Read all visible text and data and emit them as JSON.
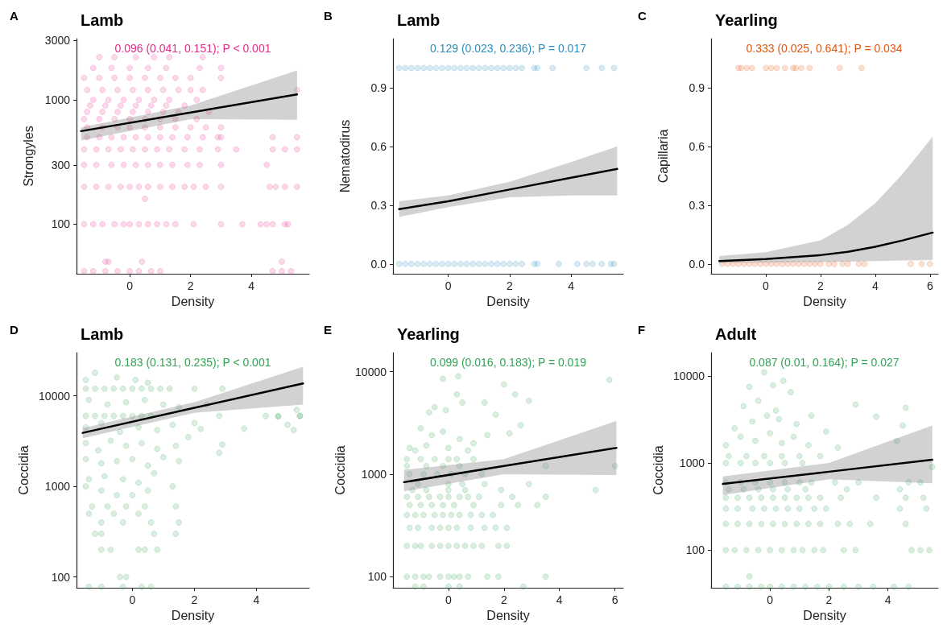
{
  "chart_data": [
    {
      "type": "scatter",
      "title": "Lamb",
      "xlabel": "Density",
      "ylabel": "Strongyles",
      "annotations": [
        "A",
        "0.096 (0.041, 0.151); P < 0.001"
      ],
      "log": "y",
      "xlim": [
        -1.75,
        5.9
      ],
      "xticks": [
        0,
        2,
        4
      ],
      "ylim": [
        40,
        3100
      ],
      "yticks": [
        100,
        300,
        1000,
        3000
      ],
      "series": [
        {
          "type": "scatter",
          "marker": "circle",
          "color": "#e7298a",
          "x": [
            -1.5,
            -1.2,
            -0.8,
            -0.4,
            0,
            0.3,
            0.7,
            1.0,
            4.7,
            5.0,
            5.3,
            -0.8,
            -0.7,
            0.4,
            5.0,
            0.5,
            -1.5,
            -1.2,
            -0.9,
            -0.5,
            -0.2,
            0,
            0.3,
            0.6,
            0.9,
            1.2,
            1.5,
            2.1,
            3.0,
            3.7,
            4.3,
            4.5,
            4.7,
            5.1,
            5.2,
            -1.5,
            -1.1,
            -0.7,
            -0.3,
            0,
            0.3,
            0.6,
            1.0,
            1.4,
            1.8,
            2.1,
            2.5,
            3.0,
            4.6,
            4.8,
            5.1,
            5.5,
            -1.5,
            -1.1,
            -0.6,
            -0.2,
            0.2,
            0.6,
            1.0,
            1.4,
            1.9,
            2.3,
            3.0,
            4.5,
            -1.5,
            -1.1,
            -0.7,
            -0.3,
            0.1,
            0.5,
            0.9,
            1.3,
            1.8,
            2.3,
            2.9,
            3.5,
            4.7,
            5.1,
            5.5,
            -1.4,
            -1.0,
            -0.6,
            -0.2,
            0.2,
            0.6,
            1.0,
            1.4,
            1.9,
            2.4,
            2.9,
            3.0,
            4.7,
            5.5,
            -1.4,
            -0.9,
            -0.4,
            0.0,
            0.5,
            1.0,
            1.5,
            2.0,
            2.5,
            3.0,
            -1.5,
            -1.0,
            -0.5,
            0,
            0.5,
            1.0,
            1.5,
            2.2,
            -1.4,
            -0.9,
            -0.4,
            0.1,
            0.6,
            1.1,
            1.6,
            2.6,
            -1.3,
            -0.8,
            -0.3,
            0.2,
            0.7,
            1.2,
            1.8,
            -1.2,
            -0.7,
            -0.2,
            0.3,
            0.8,
            1.3,
            2.2,
            -1.4,
            -0.9,
            -0.4,
            0.1,
            0.6,
            1.1,
            1.6,
            2.0,
            2.4,
            5.5,
            -1.5,
            -1.0,
            -0.5,
            0,
            0.5,
            1.0,
            1.5,
            2.0,
            3.0,
            -1.2,
            -0.6,
            0,
            0.6,
            1.2,
            2.3,
            3.0,
            -1.0,
            -0.5,
            0.2,
            0.8,
            1.3,
            2.4
          ],
          "values": [
            42,
            42,
            42,
            42,
            42,
            42,
            42,
            42,
            42,
            42,
            42,
            50,
            50,
            50,
            50,
            160,
            100,
            100,
            100,
            100,
            100,
            100,
            100,
            100,
            100,
            100,
            100,
            100,
            100,
            100,
            100,
            100,
            100,
            100,
            100,
            200,
            200,
            200,
            200,
            200,
            200,
            200,
            200,
            200,
            200,
            200,
            200,
            200,
            200,
            200,
            200,
            200,
            300,
            300,
            300,
            300,
            300,
            300,
            300,
            300,
            300,
            300,
            300,
            300,
            400,
            400,
            400,
            400,
            400,
            400,
            400,
            400,
            400,
            400,
            400,
            400,
            400,
            400,
            400,
            500,
            500,
            500,
            500,
            500,
            500,
            500,
            500,
            500,
            500,
            500,
            500,
            500,
            500,
            600,
            600,
            600,
            600,
            600,
            600,
            600,
            600,
            600,
            600,
            700,
            700,
            700,
            700,
            700,
            700,
            700,
            700,
            800,
            800,
            800,
            800,
            800,
            800,
            800,
            800,
            900,
            900,
            900,
            900,
            900,
            900,
            900,
            1000,
            1000,
            1000,
            1000,
            1000,
            1000,
            1000,
            1200,
            1200,
            1200,
            1200,
            1200,
            1200,
            1200,
            1200,
            1200,
            1200,
            1500,
            1500,
            1500,
            1500,
            1500,
            1500,
            1500,
            1500,
            1500,
            1800,
            1800,
            1800,
            1800,
            1800,
            1800,
            1800,
            2200,
            2200,
            2200,
            2200,
            2200,
            2200
          ]
        },
        {
          "type": "line",
          "marker": "none",
          "color": "#000000",
          "x": [
            -1.6,
            2,
            5.5
          ],
          "values": [
            560,
            790,
            1104
          ],
          "lower": [
            470,
            700,
            690
          ],
          "upper": [
            600,
            900,
            1720
          ]
        }
      ]
    },
    {
      "type": "scatter",
      "title": "Lamb",
      "xlabel": "Density",
      "ylabel": "Nematodirus",
      "annotations": [
        "B",
        "0.129 (0.023, 0.236); P = 0.017"
      ],
      "xlim": [
        -1.8,
        5.7
      ],
      "xticks": [
        0,
        2,
        4
      ],
      "ylim": [
        -0.05,
        1.15
      ],
      "yticks": [
        {
          "value": 0,
          "label": "0.0"
        },
        0.3,
        0.6,
        0.9
      ],
      "series": [
        {
          "type": "scatter",
          "marker": "circle",
          "color": "#2b8cbe",
          "x": [
            -1.6,
            -1.4,
            -1.2,
            -1.0,
            -0.8,
            -0.6,
            -0.4,
            -0.2,
            0,
            0.2,
            0.4,
            0.6,
            0.8,
            1.0,
            1.2,
            1.4,
            1.6,
            1.8,
            2.0,
            2.2,
            2.4,
            2.8,
            2.9,
            3.4,
            4.5,
            5.0,
            5.4,
            -1.6,
            -1.4,
            -1.2,
            -1.0,
            -0.8,
            -0.6,
            -0.4,
            -0.2,
            0,
            0.2,
            0.4,
            0.6,
            0.8,
            1.0,
            1.2,
            1.4,
            1.6,
            1.8,
            2.0,
            2.2,
            2.4,
            2.8,
            2.9,
            3.6,
            4.2,
            4.5,
            4.7,
            5.0,
            5.3,
            5.4
          ],
          "values": [
            1,
            1,
            1,
            1,
            1,
            1,
            1,
            1,
            1,
            1,
            1,
            1,
            1,
            1,
            1,
            1,
            1,
            1,
            1,
            1,
            1,
            1,
            1,
            1,
            1,
            1,
            1,
            0,
            0,
            0,
            0,
            0,
            0,
            0,
            0,
            0,
            0,
            0,
            0,
            0,
            0,
            0,
            0,
            0,
            0,
            0,
            0,
            0,
            0,
            0,
            0,
            0,
            0,
            0,
            0,
            0,
            0
          ]
        },
        {
          "type": "line",
          "marker": "none",
          "color": "#000000",
          "x": [
            -1.6,
            0,
            2,
            4,
            5.5
          ],
          "values": [
            0.28,
            0.32,
            0.38,
            0.44,
            0.485
          ],
          "lower": [
            0.24,
            0.29,
            0.34,
            0.35,
            0.35
          ],
          "upper": [
            0.32,
            0.35,
            0.42,
            0.52,
            0.6
          ]
        }
      ]
    },
    {
      "type": "scatter",
      "title": "Yearling",
      "xlabel": "Density",
      "ylabel": "Capillaria",
      "annotations": [
        "C",
        "0.333 (0.025, 0.641); P = 0.034"
      ],
      "xlim": [
        -2,
        6.3
      ],
      "xticks": [
        0,
        2,
        4,
        6
      ],
      "ylim": [
        -0.05,
        1.15
      ],
      "yticks": [
        {
          "value": 0,
          "label": "0.0"
        },
        0.3,
        0.6,
        0.9
      ],
      "series": [
        {
          "type": "scatter",
          "marker": "circle",
          "color": "#e6550d",
          "x": [
            -1.0,
            -0.9,
            -0.7,
            -0.5,
            0,
            0.2,
            0.4,
            0.7,
            1.0,
            1.1,
            1.3,
            1.6,
            2.7,
            3.5,
            -1.6,
            -1.4,
            -1.2,
            -1.0,
            -0.8,
            -0.6,
            -0.4,
            -0.2,
            0,
            0.2,
            0.4,
            0.6,
            0.8,
            1.0,
            1.2,
            1.4,
            1.6,
            1.8,
            2.0,
            2.3,
            2.5,
            2.8,
            3.0,
            3.4,
            3.6,
            5.3,
            5.7,
            6.0
          ],
          "values": [
            1,
            1,
            1,
            1,
            1,
            1,
            1,
            1,
            1,
            1,
            1,
            1,
            1,
            1,
            0,
            0,
            0,
            0,
            0,
            0,
            0,
            0,
            0,
            0,
            0,
            0,
            0,
            0,
            0,
            0,
            0,
            0,
            0,
            0,
            0,
            0,
            0,
            0,
            0,
            0,
            0,
            0
          ]
        },
        {
          "type": "line",
          "marker": "none",
          "color": "#000000",
          "x": [
            -1.7,
            0,
            2,
            3,
            4,
            5,
            6.1
          ],
          "values": [
            0.015,
            0.025,
            0.045,
            0.062,
            0.088,
            0.12,
            0.16
          ],
          "lower": [
            0.005,
            0.008,
            0.01,
            0.012,
            0.015,
            0.018,
            0.02
          ],
          "upper": [
            0.04,
            0.06,
            0.12,
            0.2,
            0.31,
            0.46,
            0.65
          ]
        }
      ]
    },
    {
      "type": "scatter",
      "title": "Lamb",
      "xlabel": "Density",
      "ylabel": "Coccidia",
      "annotations": [
        "D",
        "0.183 (0.131, 0.235); P < 0.001"
      ],
      "log": "y",
      "xlim": [
        -1.8,
        5.7
      ],
      "xticks": [
        0,
        2,
        4
      ],
      "ylim": [
        76,
        30000
      ],
      "yticks": [
        100,
        1000,
        10000
      ],
      "series": [
        {
          "type": "scatter",
          "marker": "circle",
          "color": "#31a354",
          "x": [
            -1.5,
            -1.2,
            -0.9,
            -0.6,
            -0.3,
            0,
            0.3,
            0.6,
            0.9,
            1.2,
            2.0,
            2.9,
            -1.5,
            -1.2,
            -0.9,
            -0.6,
            -0.3,
            0,
            0.3,
            0.6,
            2.8,
            4.3,
            4.7,
            5.4,
            -1.5,
            -1.2,
            -0.5,
            0.1,
            0.5,
            -1.4,
            -0.8,
            -0.2,
            0.4,
            1.0,
            1.5,
            2.4,
            -1.5,
            -1.0,
            -0.4,
            0.2,
            0.8,
            1.3,
            2.0,
            2.2,
            -1.5,
            -1.1,
            -0.7,
            -0.2,
            0.3,
            0.8,
            1.4,
            1.8,
            2.8,
            2.9,
            -1.5,
            -1.0,
            -0.5,
            0,
            0.5,
            1.0,
            1.5,
            -1.4,
            -0.9,
            -0.3,
            0.2,
            0.7,
            1.3,
            -1.5,
            -1.0,
            -0.5,
            0,
            0.5,
            -1.3,
            -0.8,
            -0.2,
            0.4,
            1.4,
            -1.4,
            -0.6,
            0.2,
            -1.0,
            -0.3,
            0.6,
            1.5,
            -1.2,
            -1.0,
            0.7,
            1.4,
            -1.0,
            -0.7,
            0.2,
            0.4,
            0.8,
            -0.4,
            -0.2,
            -1.4,
            -1.0,
            -0.3,
            0.3,
            0.6,
            3.6,
            4.7,
            5.0,
            5.2,
            5.3,
            5.4
          ],
          "values": [
            12000,
            12000,
            12000,
            12000,
            12000,
            12000,
            12000,
            12000,
            12000,
            12000,
            12000,
            12000,
            6000,
            6000,
            6000,
            6000,
            6000,
            6000,
            6000,
            6000,
            6000,
            6000,
            6000,
            6000,
            15000,
            18000,
            16000,
            15000,
            14000,
            9000,
            8000,
            8500,
            9000,
            8000,
            7500,
            8000,
            4500,
            5000,
            4000,
            4500,
            4200,
            4800,
            5000,
            4300,
            3000,
            2500,
            3200,
            2800,
            3000,
            2600,
            2800,
            3500,
            2350,
            2900,
            2000,
            1800,
            1900,
            2000,
            1700,
            2100,
            1900,
            1200,
            1300,
            1200,
            1100,
            1400,
            1000,
            1000,
            900,
            800,
            800,
            900,
            600,
            600,
            600,
            600,
            600,
            500,
            500,
            500,
            400,
            400,
            400,
            400,
            300,
            300,
            300,
            300,
            200,
            200,
            200,
            200,
            200,
            100,
            100,
            78,
            78,
            78,
            78,
            78,
            4350,
            5900,
            4800,
            4200,
            7000,
            6000
          ]
        },
        {
          "type": "line",
          "marker": "none",
          "color": "#000000",
          "x": [
            -1.6,
            2,
            5.5
          ],
          "values": [
            3900,
            7380,
            13700
          ],
          "lower": [
            3400,
            6500,
            8000
          ],
          "upper": [
            4400,
            8500,
            21000
          ]
        }
      ]
    },
    {
      "type": "scatter",
      "title": "Yearling",
      "xlabel": "Density",
      "ylabel": "Coccidia",
      "annotations": [
        "E",
        "0.099 (0.016, 0.183); P = 0.019"
      ],
      "log": "y",
      "xlim": [
        -2,
        6.3
      ],
      "xticks": [
        0,
        2,
        4,
        6
      ],
      "ylim": [
        78,
        15300
      ],
      "yticks": [
        100,
        1000,
        10000
      ],
      "series": [
        {
          "type": "scatter",
          "marker": "circle",
          "color": "#31a354",
          "x": [
            -1.2,
            -0.9,
            0,
            0.4,
            2.7,
            -1.5,
            -1.2,
            -0.9,
            -0.7,
            -0.3,
            0,
            0.2,
            0.4,
            0.7,
            1.4,
            1.8,
            3.5,
            -1.5,
            -1.2,
            -1.0,
            -0.6,
            -0.3,
            0,
            0.3,
            0.6,
            0.9,
            1.2,
            1.8,
            2.1,
            -1.4,
            -1.1,
            -0.6,
            -0.3,
            0,
            0.3,
            0.8,
            1.3,
            1.7,
            2.1,
            -1.5,
            -1.2,
            -0.9,
            -0.5,
            -0.2,
            0.1,
            0.4,
            0.8,
            1.2,
            1.6,
            -1.4,
            -1.0,
            -0.6,
            -0.2,
            0.2,
            0.9,
            1.9,
            2.5,
            3.2,
            -1.5,
            -1.1,
            -0.7,
            -0.3,
            0,
            0.4,
            0.7,
            1.1,
            2.3,
            3.5,
            -1.3,
            -0.8,
            0,
            0.6,
            1.9,
            5.3,
            -1.1,
            0,
            0.5,
            1.3,
            2.9,
            -1.4,
            -0.9,
            -0.4,
            0.1,
            0.6,
            1.2,
            -1.5,
            -0.8,
            -0.2,
            0.4,
            3.5,
            6.0,
            -1.5,
            -1.0,
            -0.5,
            0,
            0.3,
            0.9,
            -1.0,
            -0.6,
            -0.2,
            0.4,
            -0.8,
            0.9,
            1.4,
            2.2,
            2.6,
            -0.5,
            -0.1,
            0.3,
            0.5,
            -0.7,
            1.3,
            1.7,
            2.0,
            2.4,
            2.9,
            -0.2,
            0.35,
            5.8,
            -1.4,
            -1.2,
            0.0,
            0.7
          ],
          "values": [
            80,
            80,
            80,
            80,
            80,
            100,
            100,
            100,
            100,
            100,
            100,
            100,
            100,
            100,
            100,
            100,
            100,
            200,
            200,
            200,
            200,
            200,
            200,
            200,
            200,
            200,
            200,
            200,
            200,
            300,
            300,
            300,
            300,
            300,
            300,
            300,
            300,
            300,
            300,
            400,
            400,
            400,
            400,
            400,
            400,
            400,
            400,
            400,
            400,
            500,
            500,
            500,
            500,
            500,
            500,
            500,
            500,
            500,
            600,
            600,
            600,
            600,
            600,
            600,
            600,
            600,
            600,
            600,
            700,
            700,
            700,
            700,
            700,
            700,
            800,
            800,
            800,
            800,
            800,
            1000,
            1000,
            1000,
            1000,
            1000,
            1000,
            1200,
            1200,
            1200,
            1200,
            1200,
            1200,
            1400,
            1400,
            1400,
            1400,
            1400,
            1400,
            2800,
            2400,
            2600,
            2200,
            1900,
            2000,
            2400,
            2500,
            3000,
            4500,
            4200,
            6000,
            5000,
            4000,
            5000,
            3800,
            7500,
            6000,
            5200,
            8500,
            9000,
            8300,
            1800,
            1700,
            1800,
            1700
          ]
        },
        {
          "type": "line",
          "marker": "none",
          "color": "#000000",
          "x": [
            -1.6,
            2,
            6.05
          ],
          "values": [
            835,
            1200,
            1800
          ],
          "lower": [
            680,
            1000,
            980
          ],
          "upper": [
            1100,
            1400,
            3300
          ]
        }
      ]
    },
    {
      "type": "scatter",
      "title": "Adult",
      "xlabel": "Density",
      "ylabel": "Coccidia",
      "annotations": [
        "F",
        "0.087 (0.01, 0.164); P = 0.027"
      ],
      "log": "y",
      "xlim": [
        -2,
        5.7
      ],
      "xticks": [
        0,
        2,
        4
      ],
      "ylim": [
        37,
        18500
      ],
      "yticks": [
        100,
        1000,
        10000
      ],
      "series": [
        {
          "type": "scatter",
          "marker": "circle",
          "color": "#31a354",
          "x": [
            -1.5,
            -1.1,
            -0.7,
            -0.3,
            0,
            0.4,
            0.8,
            1.2,
            1.6,
            2.0,
            2.5,
            3.0,
            3.5,
            4.2,
            4.7,
            -0.7,
            -1.5,
            -1.2,
            -0.8,
            -0.4,
            0,
            0.4,
            0.8,
            1.1,
            1.5,
            1.8,
            2.5,
            2.9,
            4.8,
            5.1,
            5.4,
            -1.5,
            -1.1,
            -0.7,
            -0.3,
            0.1,
            0.5,
            0.9,
            1.3,
            1.7,
            2.3,
            2.7,
            3.4,
            4.6,
            -1.5,
            -1.1,
            -0.6,
            -0.2,
            0.2,
            0.6,
            1.0,
            1.5,
            1.9,
            4.4,
            5.3,
            -1.5,
            -1.1,
            -0.7,
            -0.3,
            0.1,
            0.5,
            0.9,
            1.3,
            1.7,
            2.4,
            3.6,
            4.6,
            5.2,
            -1.4,
            -0.9,
            -0.4,
            0.1,
            0.6,
            1.2,
            2.6,
            4.4,
            -1.5,
            -1.0,
            -0.5,
            0,
            0.5,
            1.0,
            1.4,
            2.2,
            3.0,
            4.7,
            5.1,
            -1.5,
            -1.0,
            -0.5,
            0,
            0.5,
            1.1,
            -1.4,
            -0.8,
            -0.2,
            0.4,
            1.0,
            1.7,
            -1.5,
            -1.0,
            -0.5,
            0,
            0.4,
            0.8,
            1.3,
            1.9,
            2.3,
            -1.2,
            -0.6,
            -0.1,
            0.3,
            0.9,
            1.4,
            -0.9,
            -0.4,
            0.2,
            0.7,
            -0.7,
            0.1,
            0.45,
            2.9,
            4.6,
            3.6,
            4.5,
            5.5,
            4.3,
            -0.2
          ],
          "values": [
            38,
            38,
            38,
            38,
            38,
            38,
            38,
            38,
            38,
            38,
            38,
            38,
            38,
            38,
            38,
            50,
            100,
            100,
            100,
            100,
            100,
            100,
            100,
            100,
            100,
            100,
            100,
            100,
            100,
            100,
            100,
            200,
            200,
            200,
            200,
            200,
            200,
            200,
            200,
            200,
            200,
            200,
            200,
            200,
            300,
            300,
            300,
            300,
            300,
            300,
            300,
            300,
            300,
            300,
            300,
            400,
            400,
            400,
            400,
            400,
            400,
            400,
            400,
            400,
            400,
            400,
            400,
            400,
            500,
            500,
            500,
            500,
            500,
            500,
            500,
            500,
            600,
            600,
            600,
            600,
            600,
            600,
            600,
            600,
            600,
            600,
            600,
            1000,
            1000,
            1000,
            1000,
            1000,
            1000,
            1200,
            1200,
            1200,
            1200,
            1200,
            1200,
            1600,
            2000,
            1800,
            2200,
            1700,
            2000,
            1600,
            2300,
            1500,
            2500,
            3000,
            3500,
            3200,
            2800,
            3500,
            4500,
            5200,
            4000,
            6500,
            7500,
            7800,
            8800,
            4700,
            4300,
            3400,
            2700,
            900,
            1800,
            11000
          ]
        },
        {
          "type": "line",
          "marker": "none",
          "color": "#000000",
          "x": [
            -1.6,
            2,
            5.5
          ],
          "values": [
            575,
            795,
            1090
          ],
          "lower": [
            430,
            650,
            585
          ],
          "upper": [
            700,
            1000,
            2700
          ]
        }
      ]
    }
  ]
}
